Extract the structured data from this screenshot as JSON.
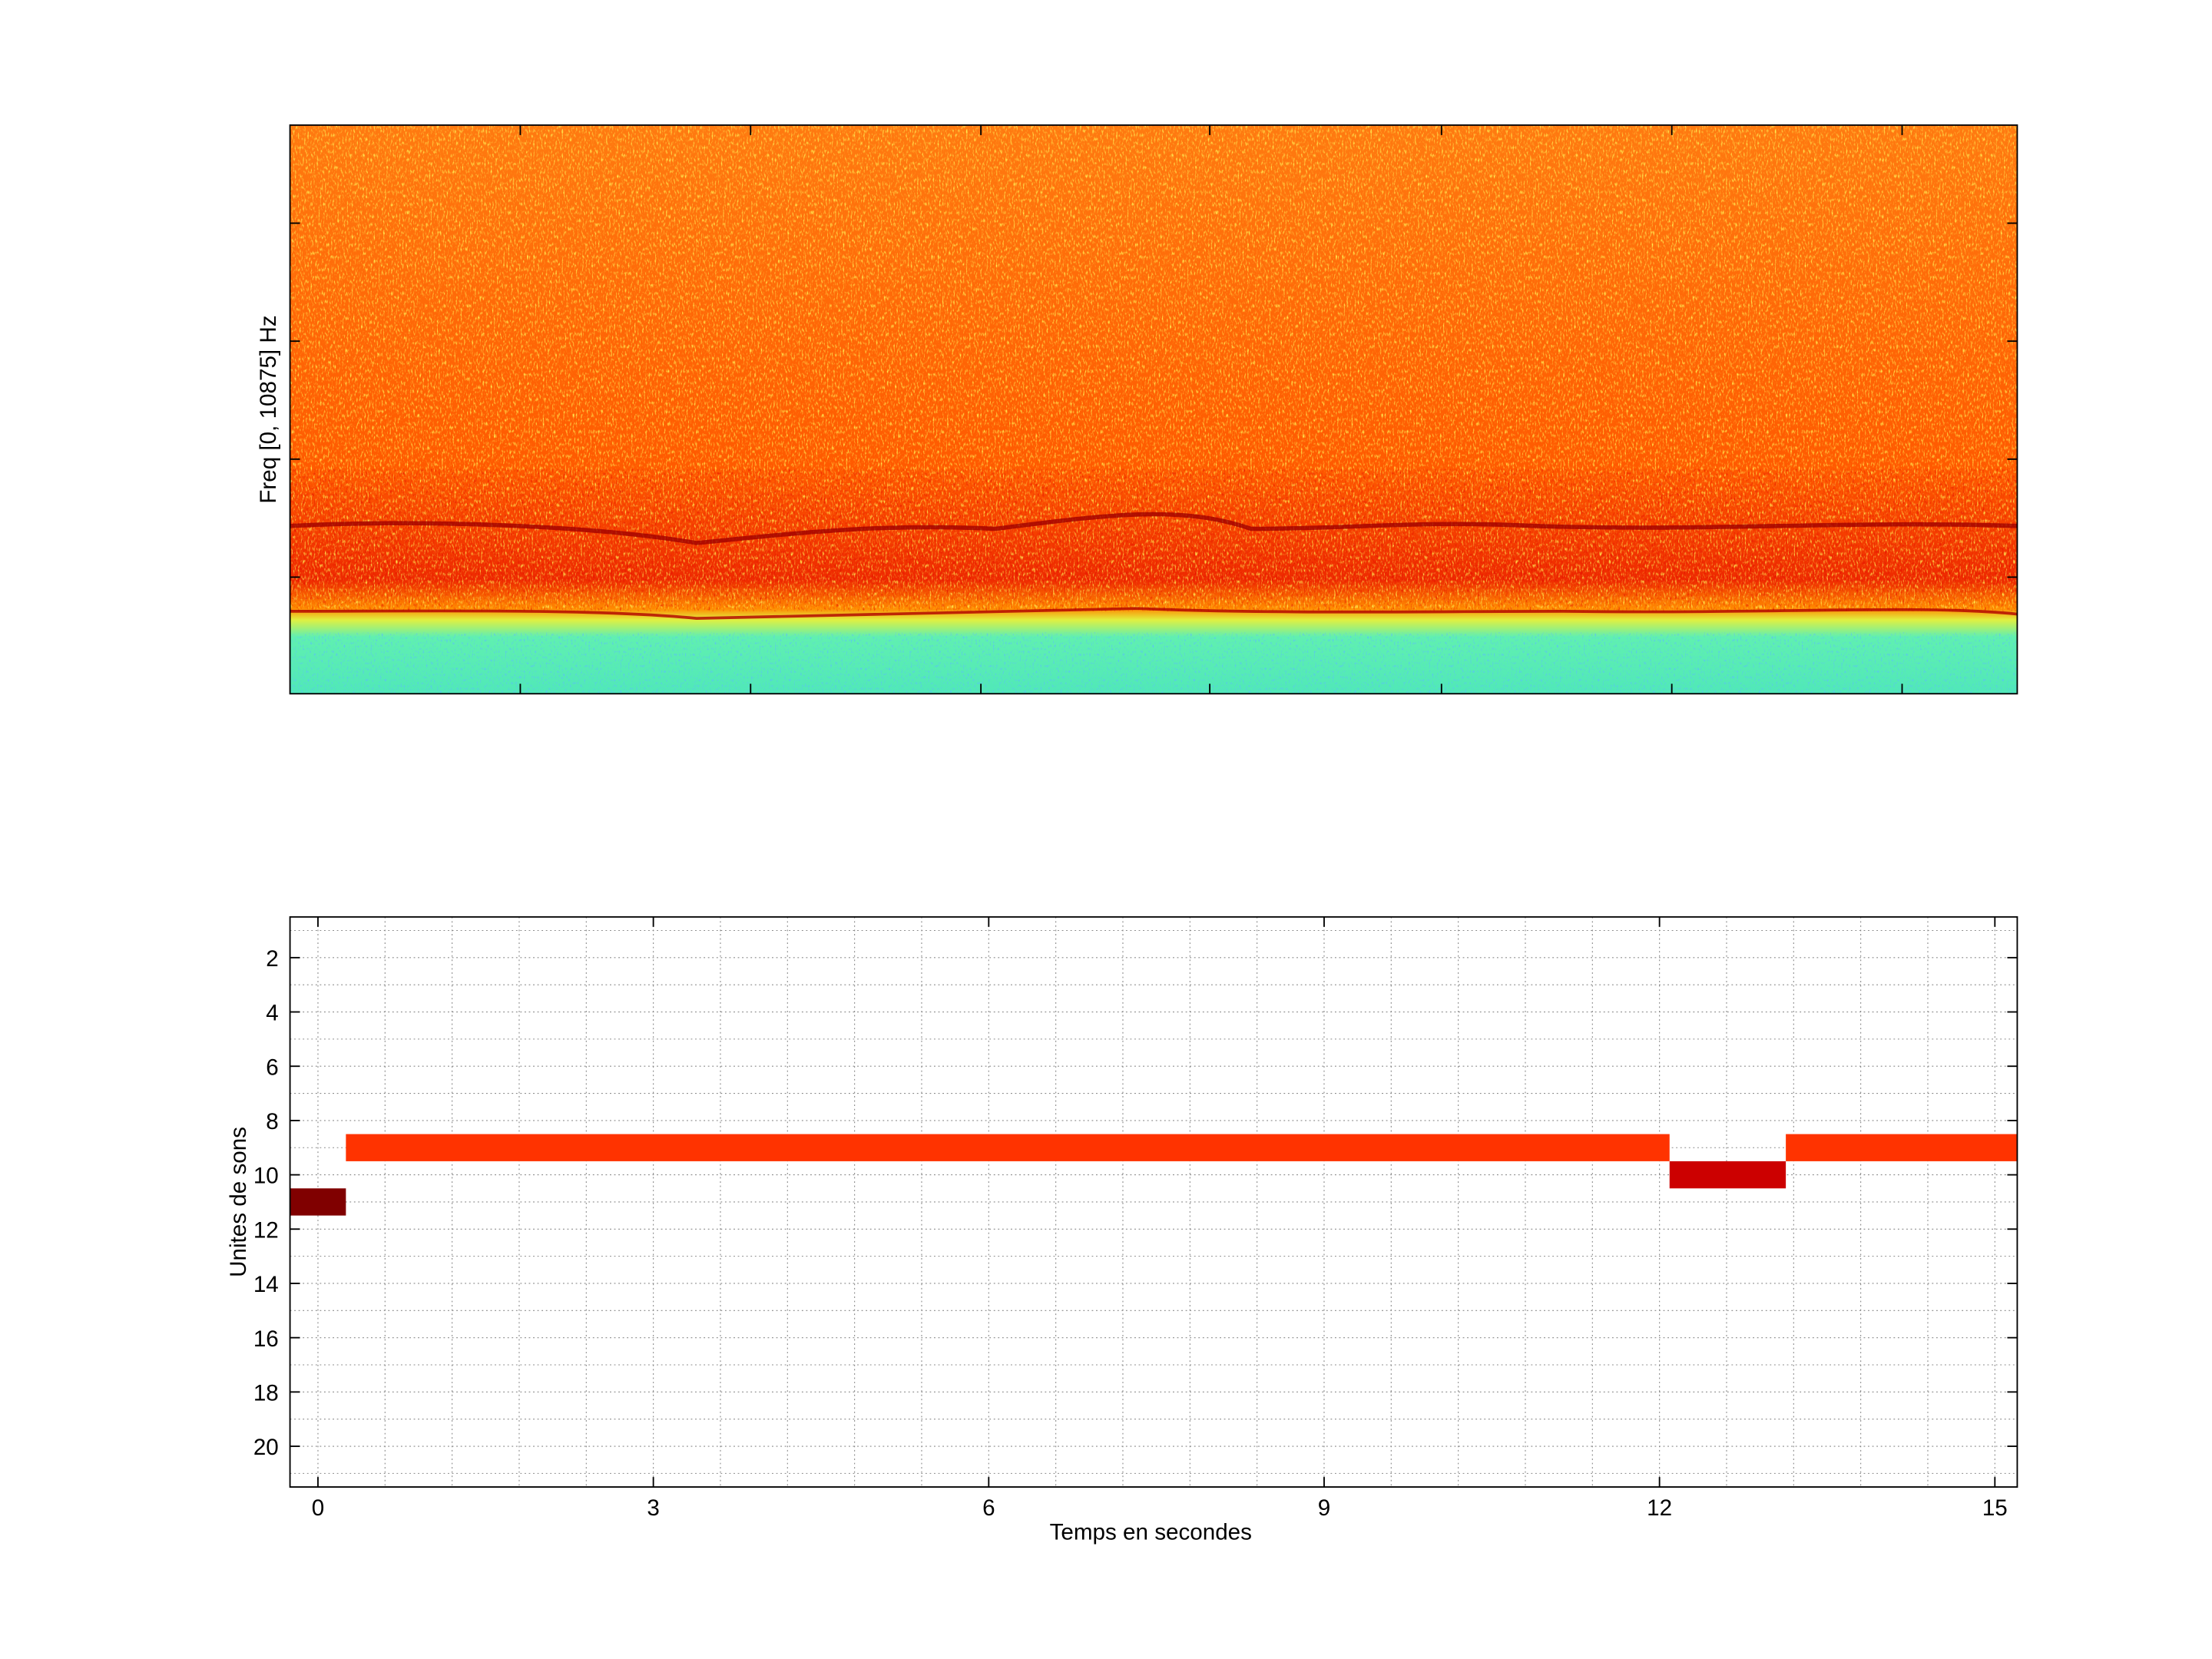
{
  "chart_data": [
    {
      "type": "spectrogram",
      "ylabel": "Freq [0, 10875] Hz"
    },
    {
      "type": "segments",
      "xlabel": "Temps en secondes",
      "ylabel": "Unites de sons",
      "xlim": [
        -0.25,
        15.2
      ],
      "xticks": [
        0,
        3,
        6,
        9,
        12,
        15
      ],
      "xgrid": [
        0,
        0.6,
        1.2,
        1.8,
        2.4,
        3,
        3.6,
        4.2,
        4.8,
        5.4,
        6,
        6.6,
        7.2,
        7.8,
        8.4,
        9,
        9.6,
        10.2,
        10.8,
        11.4,
        12,
        12.6,
        13.2,
        13.8,
        14.4,
        15
      ],
      "ylim": [
        21.5,
        0.5
      ],
      "yticks": [
        2,
        4,
        6,
        8,
        10,
        12,
        14,
        16,
        18,
        20
      ],
      "ygrid": [
        1,
        2,
        3,
        4,
        5,
        6,
        7,
        8,
        9,
        10,
        11,
        12,
        13,
        14,
        15,
        16,
        17,
        18,
        19,
        20,
        21
      ],
      "grid": true,
      "segments": [
        {
          "start": -0.25,
          "end": 0.25,
          "unit": 11,
          "color": "#800000"
        },
        {
          "start": 0.25,
          "end": 12.09,
          "unit": 9,
          "color": "#ff3300"
        },
        {
          "start": 12.09,
          "end": 13.13,
          "unit": 10,
          "color": "#cc0000"
        },
        {
          "start": 13.13,
          "end": 15.2,
          "unit": 9,
          "color": "#ff3300"
        }
      ]
    }
  ]
}
